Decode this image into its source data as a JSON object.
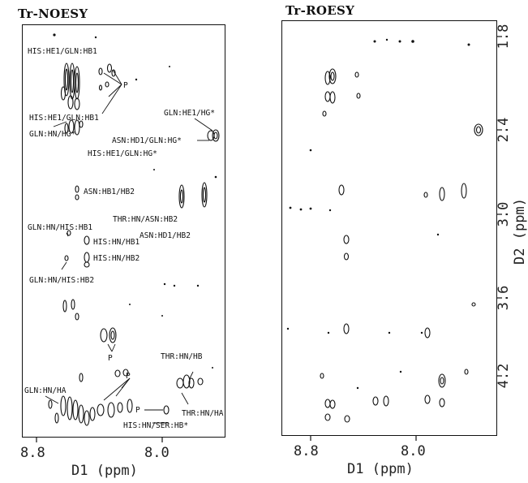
{
  "figure": {
    "left_panel": {
      "title": "Tr-NOESY",
      "x_axis": {
        "label": "D1 (ppm)",
        "ticks": [
          "8.8",
          "8.0"
        ]
      },
      "annotations": [
        "HIS:HE1/GLN:HB1",
        "P",
        "HIS:HE1/GLN:HB1",
        "GLN:HE1/HG*",
        "ASN:HD1/GLN:HG*",
        "GLN:HN/HG*",
        "HIS:HE1/GLN:HG*",
        "ASN:HB1/HB2",
        "THR:HN/ASN:HB2",
        "ASN:HD1/HB2",
        "GLN:HN/HIS:HB1",
        "HIS:HN/HB1",
        "HIS:HN/HB2",
        "GLN:HN/HIS:HB2",
        "P",
        "THR:HN/HB",
        "P",
        "GLN:HN/HA",
        "P",
        "THR:HN/HA",
        "HIS:HN/SER:HB*"
      ]
    },
    "right_panel": {
      "title": "Tr-ROESY",
      "x_axis": {
        "label": "D1 (ppm)",
        "ticks": [
          "8.8",
          "8.0"
        ]
      },
      "y_axis": {
        "label": "D2 (ppm)",
        "ticks": [
          "1.8",
          "2.4",
          "3.0",
          "3.6",
          "4.2"
        ]
      }
    }
  }
}
